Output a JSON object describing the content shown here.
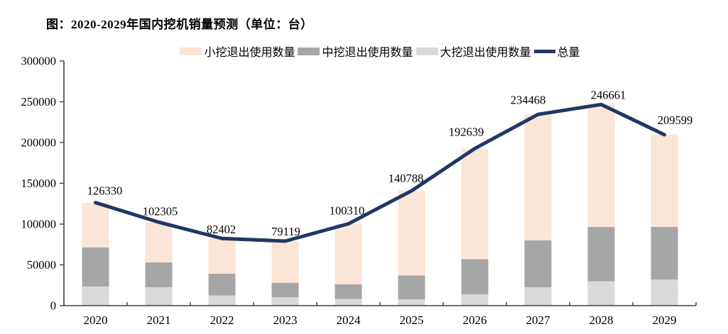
{
  "title": "图：2020-2029年国内挖机销量预测（单位：台）",
  "chart_data": {
    "type": "bar",
    "stacked": true,
    "overlay": "line",
    "title": "图：2020-2029年国内挖机销量预测（单位：台）",
    "categories": [
      "2020",
      "2021",
      "2022",
      "2023",
      "2024",
      "2025",
      "2026",
      "2027",
      "2028",
      "2029"
    ],
    "series": [
      {
        "name": "小挖退出使用数量",
        "kind": "bar",
        "color": "#fbe5d6",
        "values": [
          55030,
          49305,
          43302,
          51019,
          74210,
          103688,
          135539,
          154468,
          150161,
          113099
        ]
      },
      {
        "name": "中挖退出使用数量",
        "kind": "bar",
        "color": "#a6a6a6",
        "values": [
          47800,
          30400,
          26700,
          17900,
          18000,
          29500,
          43200,
          57400,
          66700,
          64600
        ]
      },
      {
        "name": "大挖退出使用数量",
        "kind": "bar",
        "color": "#d9d9d9",
        "values": [
          23500,
          22600,
          12400,
          10200,
          8100,
          7600,
          13900,
          22600,
          29800,
          31900
        ]
      },
      {
        "name": "总量",
        "kind": "line",
        "color": "#1f3864",
        "values": [
          126330,
          102305,
          82402,
          79119,
          100310,
          140788,
          192639,
          234468,
          246661,
          209599
        ]
      }
    ],
    "value_labels": [
      "126330",
      "102305",
      "82402",
      "79119",
      "100310",
      "140788",
      "192639",
      "234468",
      "246661",
      "209599"
    ],
    "stack_order_bottom_to_top": [
      "大挖退出使用数量",
      "中挖退出使用数量",
      "小挖退出使用数量"
    ],
    "ylim": [
      0,
      300000
    ],
    "ytick_step": 50000,
    "ytick_labels": [
      "0",
      "50000",
      "100000",
      "150000",
      "200000",
      "250000",
      "300000"
    ],
    "xlabel": "",
    "ylabel": "",
    "grid": false,
    "legend_position": "top",
    "axis_color": "#404040",
    "label_color": "#000000"
  }
}
